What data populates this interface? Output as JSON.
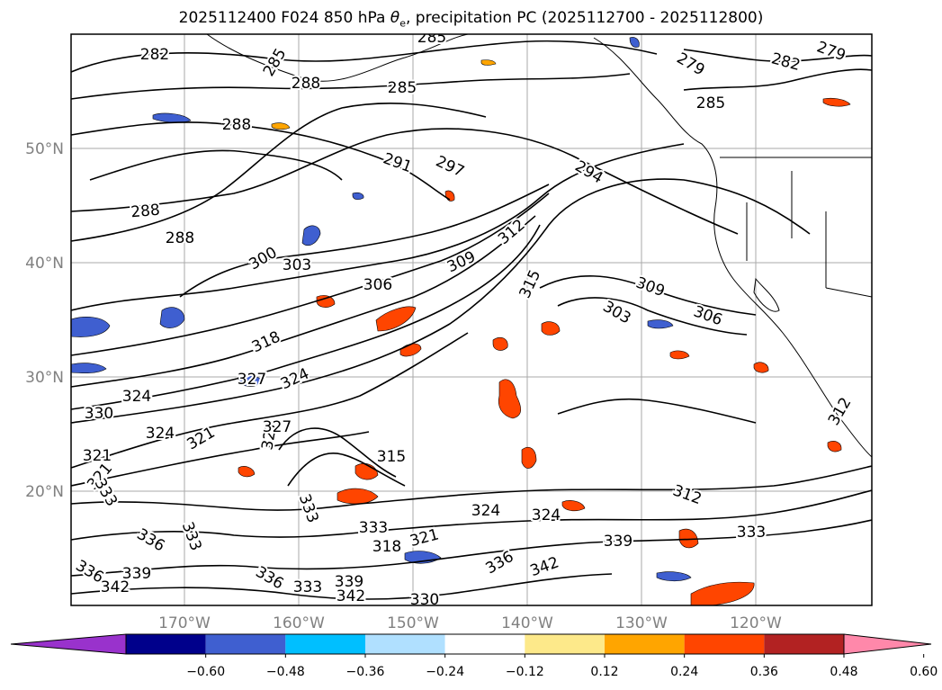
{
  "title": {
    "prefix": "2025112400 F024 850 hPa ",
    "theta_symbol": "θ",
    "theta_subscript": "e",
    "suffix": ", precipitation PC (2025112700 - 2025112800)"
  },
  "map": {
    "lat_labels": [
      "50°N",
      "40°N",
      "30°N",
      "20°N"
    ],
    "lon_labels": [
      "170°W",
      "160°W",
      "150°W",
      "140°W",
      "130°W",
      "120°W"
    ],
    "gridlines": true,
    "land_color": "#ffffff",
    "axis_label_color": "#808080"
  },
  "contours": {
    "variable": "850 hPa equivalent potential temperature",
    "unit": "K",
    "interval": 3,
    "labels": [
      "282",
      "285",
      "285",
      "288",
      "285",
      "279",
      "282",
      "279",
      "285",
      "288",
      "288",
      "291",
      "297",
      "294",
      "288",
      "300",
      "303",
      "309",
      "312",
      "315",
      "306",
      "309",
      "306",
      "303",
      "318",
      "321",
      "327",
      "324",
      "324",
      "324",
      "321",
      "327",
      "321",
      "315",
      "330",
      "333",
      "333",
      "336",
      "333",
      "336",
      "333",
      "318",
      "321",
      "324",
      "324",
      "327",
      "339",
      "333",
      "336",
      "342",
      "339",
      "342",
      "330",
      "336",
      "339",
      "333",
      "342",
      "312",
      "312"
    ]
  },
  "colorbar": {
    "boundaries": [
      "−0.60",
      "−0.48",
      "−0.36",
      "−0.24",
      "−0.12",
      "0.12",
      "0.24",
      "0.36",
      "0.48",
      "0.60"
    ],
    "colors": [
      "#9932cc",
      "#00008b",
      "#3f5fd0",
      "#00bfff",
      "#b0e0ff",
      "#ffffff",
      "#fde98a",
      "#ffa500",
      "#ff4500",
      "#b22222",
      "#ff88aa"
    ],
    "extend": "both"
  }
}
